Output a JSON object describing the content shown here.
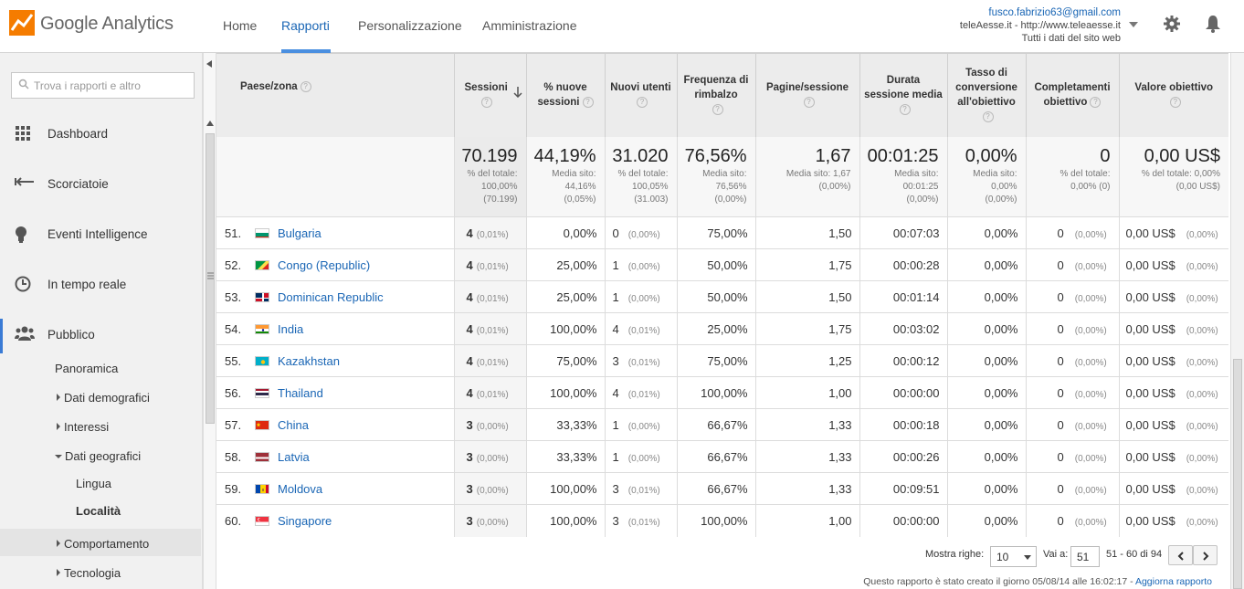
{
  "app": {
    "name": "Google Analytics",
    "logo_icon": "analytics-chart-icon"
  },
  "nav": {
    "home": "Home",
    "reports": "Rapporti",
    "customize": "Personalizzazione",
    "admin": "Amministrazione"
  },
  "account": {
    "email": "fusco.fabrizio63@gmail.com",
    "property": "teleAesse.it - http://www.teleaesse.it",
    "view": "Tutti i dati del sito web"
  },
  "sidebar": {
    "search_placeholder": "Trova i rapporti e altro",
    "items": [
      {
        "label": "Dashboard",
        "icon": "grid-icon"
      },
      {
        "label": "Scorciatoie",
        "icon": "shortcut-arrow-icon"
      },
      {
        "label": "Eventi Intelligence",
        "icon": "lightbulb-icon"
      },
      {
        "label": "In tempo reale",
        "icon": "clock-icon"
      },
      {
        "label": "Pubblico",
        "icon": "people-icon"
      }
    ],
    "sub": {
      "overview": "Panoramica",
      "demographics": "Dati demografici",
      "interests": "Interessi",
      "geo": "Dati geografici",
      "language": "Lingua",
      "location": "Località",
      "behavior": "Comportamento",
      "technology": "Tecnologia"
    }
  },
  "table": {
    "headers": {
      "country": "Paese/zona",
      "sessions": "Sessioni",
      "new_sessions_pct": "% nuove sessioni",
      "new_users": "Nuovi utenti",
      "bounce": "Frequenza di rimbalzo",
      "pages": "Pagine/sessione",
      "duration": "Durata sessione media",
      "conv": "Tasso di conversione all'obiettivo",
      "completions": "Completamenti obiettivo",
      "value": "Valore obiettivo"
    },
    "totals": {
      "sessions": {
        "big": "70.199",
        "l1": "% del totale:",
        "l2": "100,00%",
        "l3": "(70.199)"
      },
      "new_sessions_pct": {
        "big": "44,19%",
        "l1": "Media sito:",
        "l2": "44,16%",
        "l3": "(0,05%)"
      },
      "new_users": {
        "big": "31.020",
        "l1": "% del totale:",
        "l2": "100,05%",
        "l3": "(31.003)"
      },
      "bounce": {
        "big": "76,56%",
        "l1": "Media sito:",
        "l2": "76,56%",
        "l3": "(0,00%)"
      },
      "pages": {
        "big": "1,67",
        "l1": "Media sito: 1,67",
        "l2": "(0,00%)",
        "l3": ""
      },
      "duration": {
        "big": "00:01:25",
        "l1": "Media sito:",
        "l2": "00:01:25",
        "l3": "(0,00%)"
      },
      "conv": {
        "big": "0,00%",
        "l1": "Media sito:",
        "l2": "0,00%",
        "l3": "(0,00%)"
      },
      "completions": {
        "big": "0",
        "l1": "% del totale:",
        "l2": "0,00% (0)",
        "l3": ""
      },
      "value": {
        "big": "0,00 US$",
        "l1": "% del totale: 0,00%",
        "l2": "(0,00 US$)",
        "l3": ""
      }
    },
    "rows": [
      {
        "rank": "51.",
        "country": "Bulgaria",
        "flag": "bg",
        "sessions": "4",
        "sessions_pct": "(0,01%)",
        "new_pct": "0,00%",
        "new_users": "0",
        "new_users_pct": "(0,00%)",
        "bounce": "75,00%",
        "pages": "1,50",
        "duration": "00:07:03",
        "conv": "0,00%",
        "comp": "0",
        "comp_pct": "(0,00%)",
        "value": "0,00 US$",
        "value_pct": "(0,00%)"
      },
      {
        "rank": "52.",
        "country": "Congo (Republic)",
        "flag": "cg",
        "sessions": "4",
        "sessions_pct": "(0,01%)",
        "new_pct": "25,00%",
        "new_users": "1",
        "new_users_pct": "(0,00%)",
        "bounce": "50,00%",
        "pages": "1,75",
        "duration": "00:00:28",
        "conv": "0,00%",
        "comp": "0",
        "comp_pct": "(0,00%)",
        "value": "0,00 US$",
        "value_pct": "(0,00%)"
      },
      {
        "rank": "53.",
        "country": "Dominican Republic",
        "flag": "do",
        "sessions": "4",
        "sessions_pct": "(0,01%)",
        "new_pct": "25,00%",
        "new_users": "1",
        "new_users_pct": "(0,00%)",
        "bounce": "50,00%",
        "pages": "1,50",
        "duration": "00:01:14",
        "conv": "0,00%",
        "comp": "0",
        "comp_pct": "(0,00%)",
        "value": "0,00 US$",
        "value_pct": "(0,00%)"
      },
      {
        "rank": "54.",
        "country": "India",
        "flag": "in",
        "sessions": "4",
        "sessions_pct": "(0,01%)",
        "new_pct": "100,00%",
        "new_users": "4",
        "new_users_pct": "(0,01%)",
        "bounce": "25,00%",
        "pages": "1,75",
        "duration": "00:03:02",
        "conv": "0,00%",
        "comp": "0",
        "comp_pct": "(0,00%)",
        "value": "0,00 US$",
        "value_pct": "(0,00%)"
      },
      {
        "rank": "55.",
        "country": "Kazakhstan",
        "flag": "kz",
        "sessions": "4",
        "sessions_pct": "(0,01%)",
        "new_pct": "75,00%",
        "new_users": "3",
        "new_users_pct": "(0,01%)",
        "bounce": "75,00%",
        "pages": "1,25",
        "duration": "00:00:12",
        "conv": "0,00%",
        "comp": "0",
        "comp_pct": "(0,00%)",
        "value": "0,00 US$",
        "value_pct": "(0,00%)"
      },
      {
        "rank": "56.",
        "country": "Thailand",
        "flag": "th",
        "sessions": "4",
        "sessions_pct": "(0,01%)",
        "new_pct": "100,00%",
        "new_users": "4",
        "new_users_pct": "(0,01%)",
        "bounce": "100,00%",
        "pages": "1,00",
        "duration": "00:00:00",
        "conv": "0,00%",
        "comp": "0",
        "comp_pct": "(0,00%)",
        "value": "0,00 US$",
        "value_pct": "(0,00%)"
      },
      {
        "rank": "57.",
        "country": "China",
        "flag": "cn",
        "sessions": "3",
        "sessions_pct": "(0,00%)",
        "new_pct": "33,33%",
        "new_users": "1",
        "new_users_pct": "(0,00%)",
        "bounce": "66,67%",
        "pages": "1,33",
        "duration": "00:00:18",
        "conv": "0,00%",
        "comp": "0",
        "comp_pct": "(0,00%)",
        "value": "0,00 US$",
        "value_pct": "(0,00%)"
      },
      {
        "rank": "58.",
        "country": "Latvia",
        "flag": "lv",
        "sessions": "3",
        "sessions_pct": "(0,00%)",
        "new_pct": "33,33%",
        "new_users": "1",
        "new_users_pct": "(0,00%)",
        "bounce": "66,67%",
        "pages": "1,33",
        "duration": "00:00:26",
        "conv": "0,00%",
        "comp": "0",
        "comp_pct": "(0,00%)",
        "value": "0,00 US$",
        "value_pct": "(0,00%)"
      },
      {
        "rank": "59.",
        "country": "Moldova",
        "flag": "md",
        "sessions": "3",
        "sessions_pct": "(0,00%)",
        "new_pct": "100,00%",
        "new_users": "3",
        "new_users_pct": "(0,01%)",
        "bounce": "66,67%",
        "pages": "1,33",
        "duration": "00:09:51",
        "conv": "0,00%",
        "comp": "0",
        "comp_pct": "(0,00%)",
        "value": "0,00 US$",
        "value_pct": "(0,00%)"
      },
      {
        "rank": "60.",
        "country": "Singapore",
        "flag": "sg",
        "sessions": "3",
        "sessions_pct": "(0,00%)",
        "new_pct": "100,00%",
        "new_users": "3",
        "new_users_pct": "(0,01%)",
        "bounce": "100,00%",
        "pages": "1,00",
        "duration": "00:00:00",
        "conv": "0,00%",
        "comp": "0",
        "comp_pct": "(0,00%)",
        "value": "0,00 US$",
        "value_pct": "(0,00%)"
      }
    ]
  },
  "pagination": {
    "show_rows_label": "Mostra righe:",
    "rows_value": "10",
    "goto_label": "Vai a:",
    "goto_value": "51",
    "range": "51 - 60 di 94"
  },
  "footer": {
    "created": "Questo rapporto è stato creato il giorno 05/08/14 alle 16:02:17 -",
    "refresh": "Aggiorna rapporto"
  },
  "colors": {
    "accent": "#1a66b5",
    "logo_orange": "#f57c00"
  }
}
